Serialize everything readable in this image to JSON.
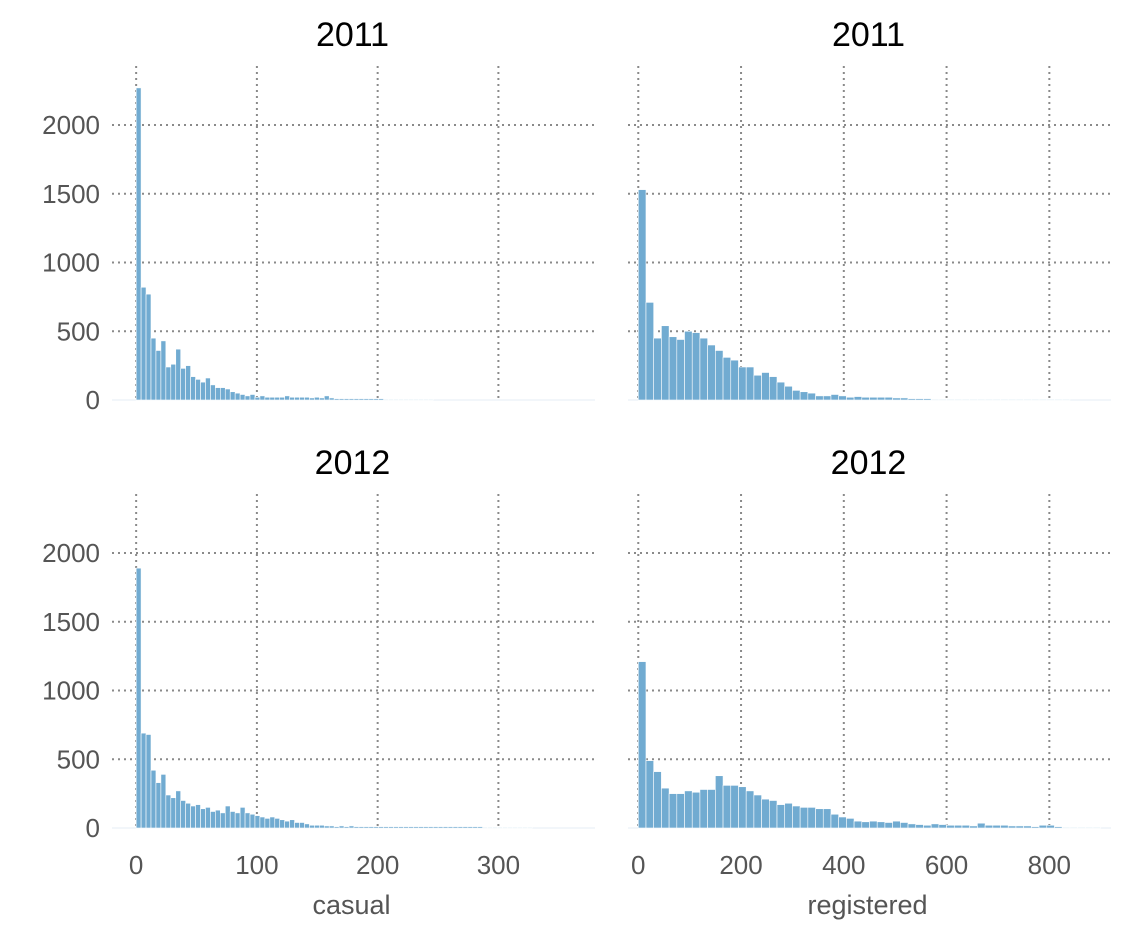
{
  "chart_data": [
    {
      "type": "bar",
      "title": "2011",
      "xlabel": "",
      "ylabel": "",
      "xlim": [
        -20,
        380
      ],
      "ylim": [
        0,
        2400
      ],
      "xticks": [
        0,
        100,
        200,
        300
      ],
      "yticks": [
        0,
        500,
        1000,
        1500,
        2000
      ],
      "bin_width": 4.1,
      "bin_start": 0,
      "values": [
        2270,
        820,
        770,
        450,
        360,
        430,
        240,
        260,
        370,
        230,
        250,
        170,
        150,
        130,
        160,
        110,
        90,
        90,
        80,
        60,
        50,
        40,
        30,
        40,
        20,
        30,
        20,
        20,
        20,
        20,
        30,
        20,
        20,
        20,
        20,
        15,
        20,
        15,
        30,
        15,
        10,
        10,
        10,
        10,
        10,
        10,
        10,
        10,
        10,
        10,
        5,
        5,
        5,
        5,
        5,
        5,
        5,
        5,
        5,
        5
      ],
      "grid": true
    },
    {
      "type": "bar",
      "title": "2011",
      "xlabel": "",
      "ylabel": "",
      "xlim": [
        -20,
        920
      ],
      "ylim": [
        0,
        2400
      ],
      "xticks": [
        0,
        200,
        400,
        600,
        800
      ],
      "yticks": [
        0,
        500,
        1000,
        1500,
        2000
      ],
      "bin_width": 15,
      "bin_start": 0,
      "values": [
        1530,
        710,
        450,
        540,
        460,
        440,
        500,
        490,
        450,
        400,
        360,
        310,
        290,
        240,
        240,
        180,
        200,
        170,
        130,
        100,
        70,
        60,
        50,
        30,
        30,
        40,
        30,
        20,
        25,
        20,
        20,
        20,
        20,
        15,
        15,
        10,
        10,
        10,
        5,
        5,
        5,
        5,
        5,
        5,
        5,
        5,
        5,
        5,
        5,
        5,
        5,
        5,
        5,
        5,
        5,
        5
      ],
      "grid": true
    },
    {
      "type": "bar",
      "title": "2012",
      "xlabel": "casual",
      "ylabel": "",
      "xlim": [
        -20,
        380
      ],
      "ylim": [
        0,
        2400
      ],
      "xticks": [
        0,
        100,
        200,
        300
      ],
      "yticks": [
        0,
        500,
        1000,
        1500,
        2000
      ],
      "bin_width": 4.1,
      "bin_start": 0,
      "values": [
        1890,
        690,
        680,
        420,
        330,
        390,
        240,
        220,
        270,
        200,
        180,
        160,
        170,
        140,
        150,
        120,
        130,
        110,
        160,
        120,
        110,
        150,
        110,
        100,
        90,
        80,
        70,
        80,
        70,
        60,
        50,
        60,
        40,
        40,
        30,
        20,
        20,
        20,
        15,
        15,
        10,
        15,
        10,
        15,
        10,
        10,
        10,
        10,
        10,
        10,
        10,
        10,
        10,
        10,
        10,
        10,
        10,
        10,
        10,
        10,
        10,
        10,
        10,
        10,
        10,
        10,
        10,
        10,
        10,
        10,
        5,
        5,
        5,
        5,
        5,
        5,
        5,
        5,
        5,
        5
      ],
      "grid": true
    },
    {
      "type": "bar",
      "title": "2012",
      "xlabel": "registered",
      "ylabel": "",
      "xlim": [
        -20,
        920
      ],
      "ylim": [
        0,
        2400
      ],
      "xticks": [
        0,
        200,
        400,
        600,
        800
      ],
      "yticks": [
        0,
        500,
        1000,
        1500,
        2000
      ],
      "bin_width": 15,
      "bin_start": 0,
      "values": [
        1210,
        490,
        410,
        290,
        250,
        250,
        270,
        260,
        280,
        280,
        380,
        310,
        310,
        300,
        270,
        240,
        210,
        200,
        170,
        180,
        160,
        150,
        150,
        140,
        140,
        100,
        80,
        70,
        50,
        45,
        50,
        45,
        40,
        50,
        40,
        30,
        25,
        20,
        30,
        25,
        20,
        20,
        20,
        15,
        35,
        20,
        20,
        20,
        15,
        15,
        15,
        10,
        20,
        20,
        10,
        5,
        5,
        5,
        5,
        5
      ],
      "grid": true
    }
  ]
}
